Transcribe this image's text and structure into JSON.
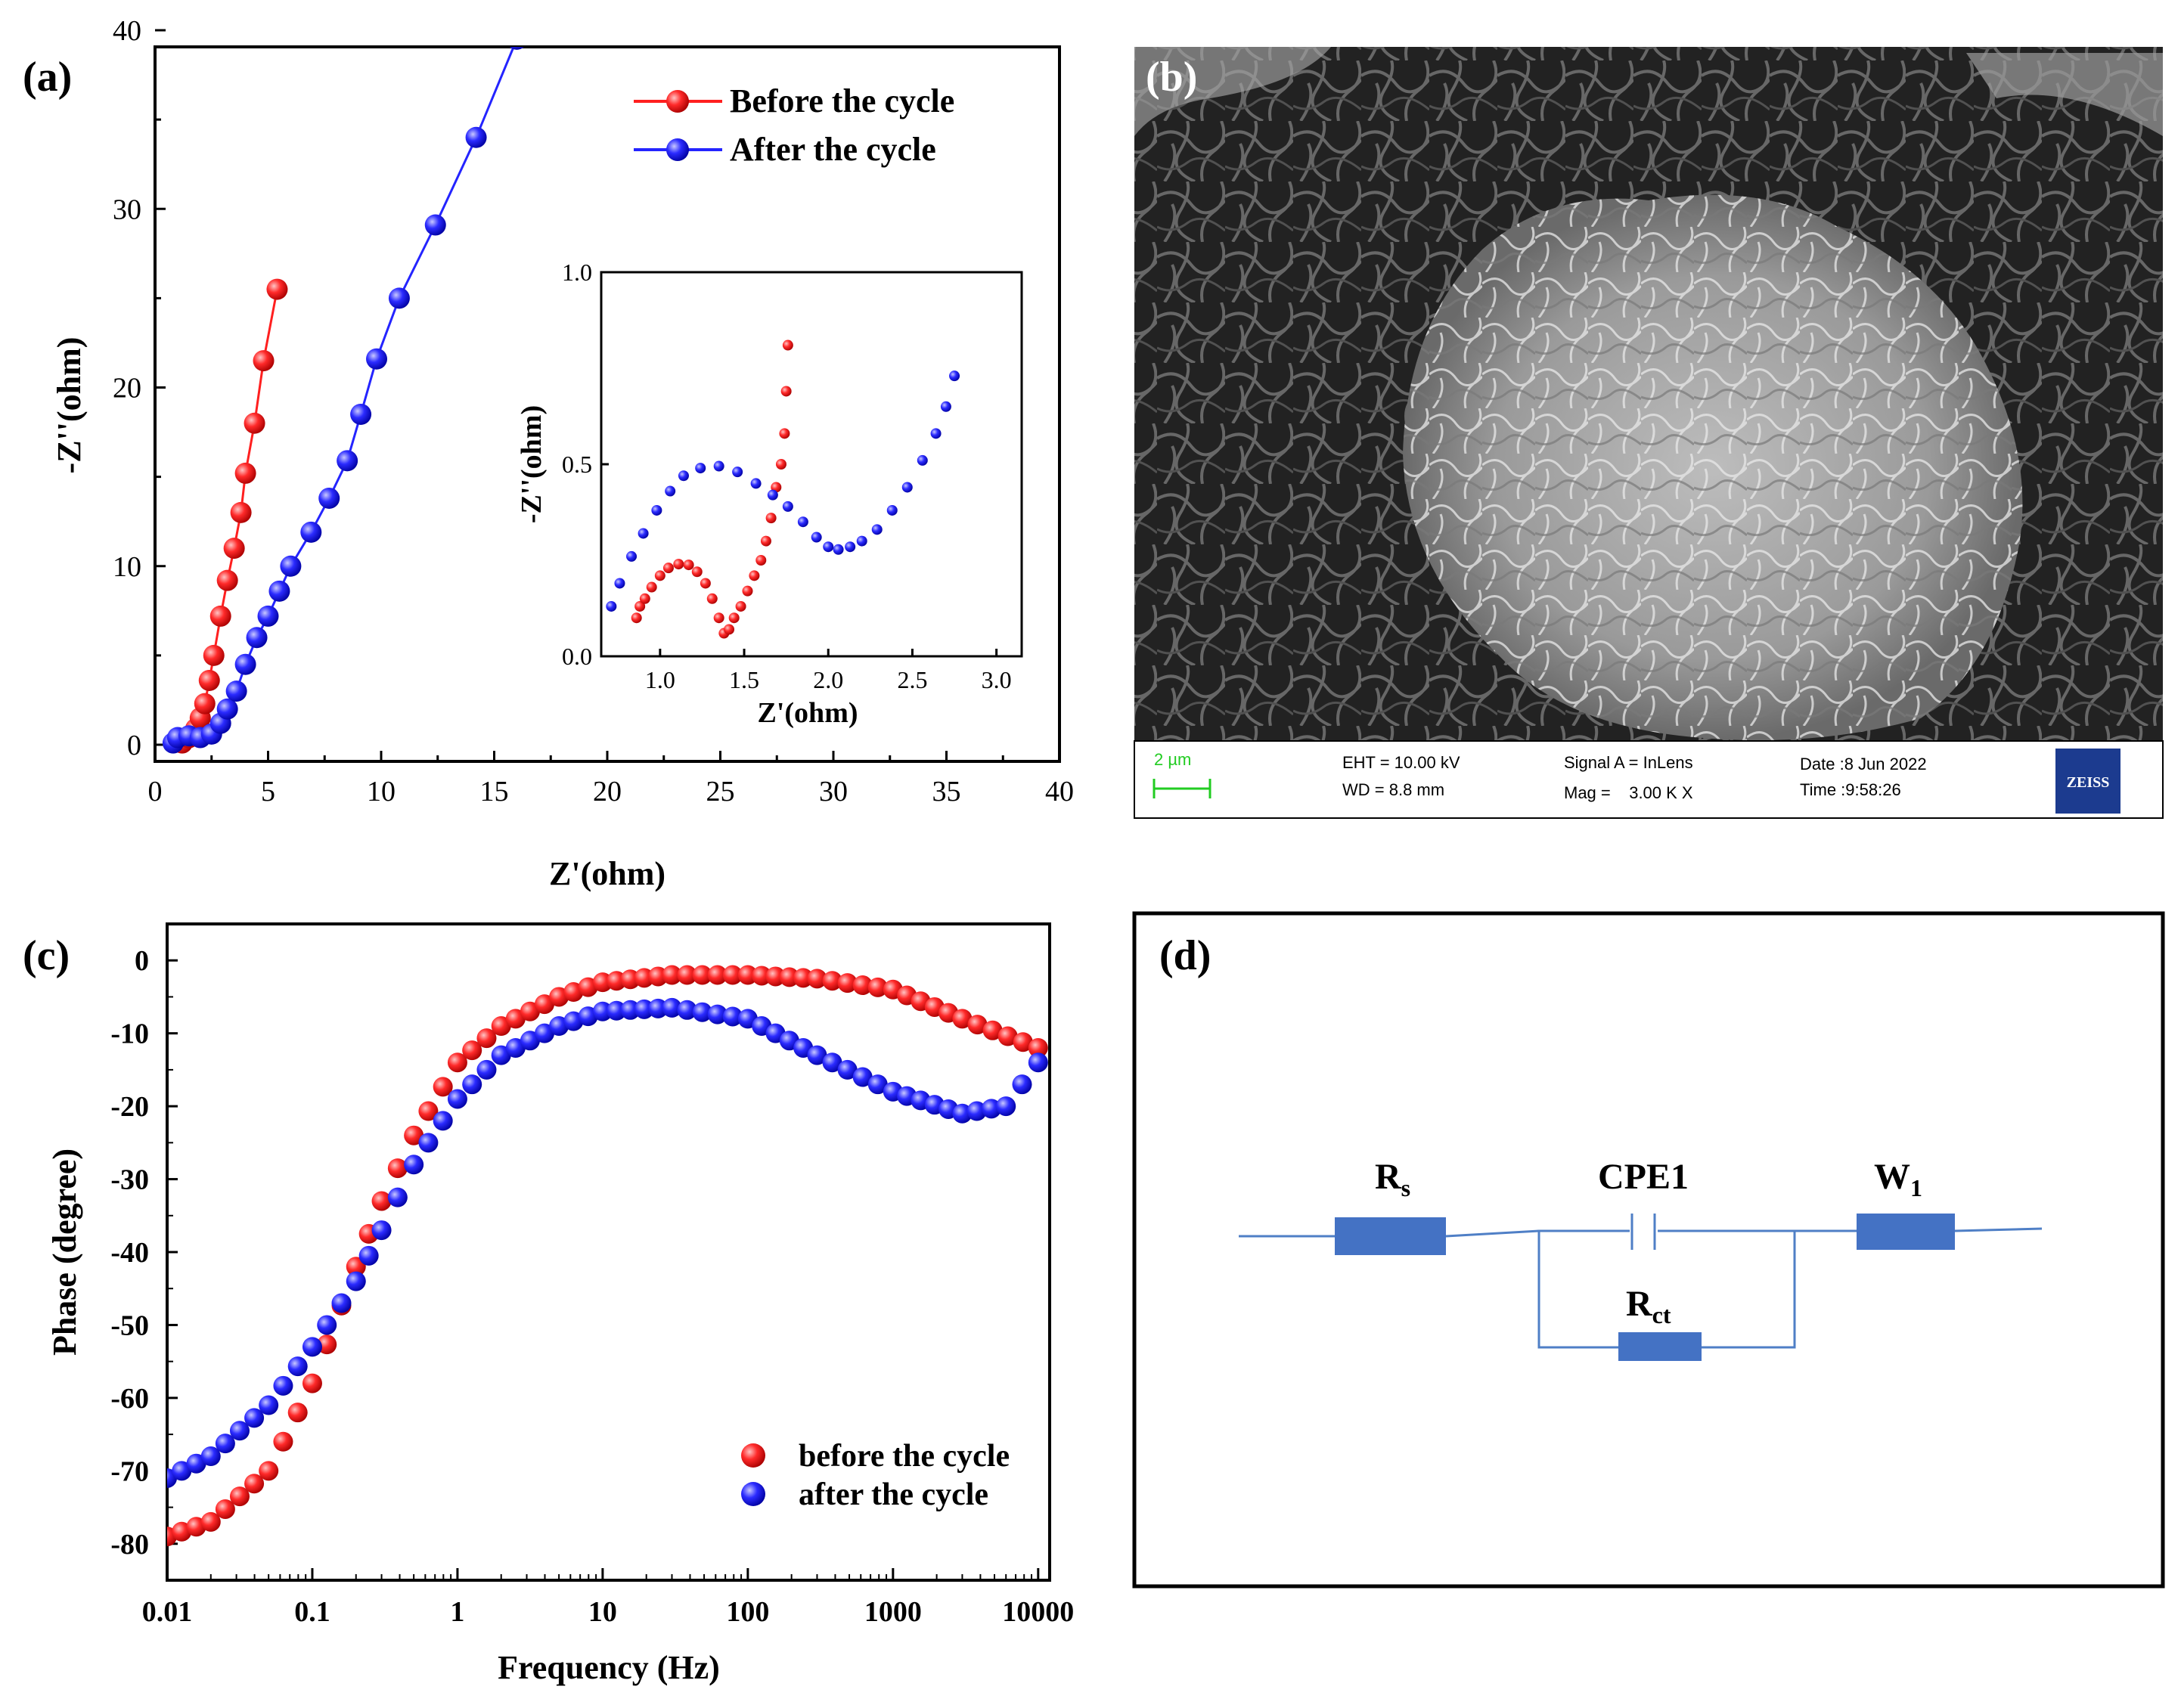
{
  "panel_labels": {
    "a": "(a)",
    "b": "(b)",
    "c": "(c)",
    "d": "(d)"
  },
  "colors": {
    "red": "#ff1f1f",
    "blue": "#2424ff",
    "circuit": "#4f7fc6",
    "green": "#22cc22",
    "zeiss": "#1c3b8f"
  },
  "chart_data": [
    {
      "id": "nyquist",
      "type": "scatter",
      "xlabel": "Z'(ohm)",
      "ylabel": "-Z''(ohm)",
      "xlim": [
        0,
        40
      ],
      "ylim": [
        0,
        40
      ],
      "xticks": [
        "0",
        "5",
        "10",
        "15",
        "20",
        "25",
        "30",
        "35",
        "40"
      ],
      "yticks": [
        "0",
        "10",
        "20",
        "30",
        "40"
      ],
      "legend": [
        {
          "label": "Before the cycle",
          "color": "#ff1f1f"
        },
        {
          "label": "After the cycle",
          "color": "#2424ff"
        }
      ],
      "series": [
        {
          "name": "Before the cycle",
          "color": "#ff1f1f",
          "points": [
            [
              1.2,
              0.1
            ],
            [
              1.5,
              0.4
            ],
            [
              1.8,
              0.9
            ],
            [
              2.0,
              1.5
            ],
            [
              2.2,
              2.3
            ],
            [
              2.4,
              3.6
            ],
            [
              2.6,
              5.0
            ],
            [
              2.9,
              7.2
            ],
            [
              3.2,
              9.2
            ],
            [
              3.5,
              11.0
            ],
            [
              3.8,
              13.0
            ],
            [
              4.0,
              15.2
            ],
            [
              4.4,
              18.0
            ],
            [
              4.8,
              21.5
            ],
            [
              5.4,
              25.5
            ]
          ]
        },
        {
          "name": "After the cycle",
          "color": "#2424ff",
          "points": [
            [
              0.8,
              0.1
            ],
            [
              1.0,
              0.4
            ],
            [
              1.5,
              0.5
            ],
            [
              2.0,
              0.4
            ],
            [
              2.5,
              0.6
            ],
            [
              2.9,
              1.2
            ],
            [
              3.2,
              2.0
            ],
            [
              3.6,
              3.0
            ],
            [
              4.0,
              4.5
            ],
            [
              4.5,
              6.0
            ],
            [
              5.0,
              7.2
            ],
            [
              5.5,
              8.6
            ],
            [
              6.0,
              10.0
            ],
            [
              6.9,
              11.9
            ],
            [
              7.7,
              13.8
            ],
            [
              8.5,
              15.9
            ],
            [
              9.1,
              18.5
            ],
            [
              9.8,
              21.6
            ],
            [
              10.8,
              25.0
            ],
            [
              12.4,
              29.1
            ],
            [
              14.2,
              34.0
            ],
            [
              16.0,
              39.5
            ]
          ]
        }
      ]
    },
    {
      "id": "nyquist-inset",
      "type": "scatter",
      "xlabel": "Z'(ohm)",
      "ylabel": "-Z''(ohm)",
      "xlim": [
        0.65,
        3.15
      ],
      "ylim": [
        0,
        1
      ],
      "xticks": [
        "1.0",
        "1.5",
        "2.0",
        "2.5",
        "3.0"
      ],
      "yticks": [
        "0.0",
        "0.5",
        "1.0"
      ],
      "series": [
        {
          "name": "Before the cycle",
          "color": "#ff1f1f",
          "points": [
            [
              0.86,
              0.1
            ],
            [
              0.88,
              0.13
            ],
            [
              0.91,
              0.15
            ],
            [
              0.95,
              0.18
            ],
            [
              1.0,
              0.21
            ],
            [
              1.05,
              0.23
            ],
            [
              1.11,
              0.24
            ],
            [
              1.17,
              0.238
            ],
            [
              1.22,
              0.22
            ],
            [
              1.27,
              0.19
            ],
            [
              1.31,
              0.15
            ],
            [
              1.35,
              0.1
            ],
            [
              1.38,
              0.06
            ],
            [
              1.41,
              0.07
            ],
            [
              1.44,
              0.1
            ],
            [
              1.48,
              0.13
            ],
            [
              1.52,
              0.17
            ],
            [
              1.56,
              0.21
            ],
            [
              1.6,
              0.25
            ],
            [
              1.63,
              0.3
            ],
            [
              1.66,
              0.36
            ],
            [
              1.69,
              0.44
            ],
            [
              1.72,
              0.5
            ],
            [
              1.74,
              0.58
            ],
            [
              1.75,
              0.69
            ],
            [
              1.76,
              0.81
            ]
          ]
        },
        {
          "name": "After the cycle",
          "color": "#2424ff",
          "points": [
            [
              0.71,
              0.13
            ],
            [
              0.76,
              0.19
            ],
            [
              0.83,
              0.26
            ],
            [
              0.9,
              0.32
            ],
            [
              0.98,
              0.38
            ],
            [
              1.06,
              0.43
            ],
            [
              1.14,
              0.47
            ],
            [
              1.24,
              0.49
            ],
            [
              1.35,
              0.495
            ],
            [
              1.46,
              0.48
            ],
            [
              1.57,
              0.45
            ],
            [
              1.67,
              0.42
            ],
            [
              1.76,
              0.39
            ],
            [
              1.85,
              0.35
            ],
            [
              1.93,
              0.31
            ],
            [
              2.0,
              0.285
            ],
            [
              2.06,
              0.278
            ],
            [
              2.13,
              0.285
            ],
            [
              2.2,
              0.3
            ],
            [
              2.29,
              0.33
            ],
            [
              2.38,
              0.38
            ],
            [
              2.47,
              0.44
            ],
            [
              2.56,
              0.51
            ],
            [
              2.64,
              0.58
            ],
            [
              2.7,
              0.65
            ],
            [
              2.75,
              0.73
            ]
          ]
        }
      ]
    },
    {
      "id": "bode-phase",
      "type": "scatter",
      "xlabel": "Frequency (Hz)",
      "ylabel": "Phase (degree)",
      "xscale": "log",
      "xlim": [
        0.01,
        12000
      ],
      "ylim": [
        -85,
        5
      ],
      "xticks": [
        "0.01",
        "0.1",
        "1",
        "10",
        "100",
        "1000",
        "10000"
      ],
      "yticks": [
        "0",
        "-10",
        "-20",
        "-30",
        "-40",
        "-50",
        "-60",
        "-70",
        "-80"
      ],
      "legend": [
        {
          "label": "before the cycle",
          "color": "#ff1f1f"
        },
        {
          "label": "after the cycle",
          "color": "#2424ff"
        }
      ],
      "series": [
        {
          "name": "before the cycle",
          "color": "#ff1f1f",
          "points": [
            [
              0.01,
              -79
            ],
            [
              0.02,
              -77
            ],
            [
              0.05,
              -70
            ],
            [
              0.1,
              -58
            ],
            [
              0.2,
              -42
            ],
            [
              0.3,
              -33
            ],
            [
              0.5,
              -24
            ],
            [
              1,
              -14
            ],
            [
              2,
              -9
            ],
            [
              5,
              -5
            ],
            [
              10,
              -3
            ],
            [
              30,
              -2
            ],
            [
              100,
              -2
            ],
            [
              300,
              -2.5
            ],
            [
              1000,
              -4
            ],
            [
              3000,
              -8
            ],
            [
              10000,
              -12
            ]
          ]
        },
        {
          "name": "after the cycle",
          "color": "#2424ff",
          "points": [
            [
              0.01,
              -71
            ],
            [
              0.02,
              -68
            ],
            [
              0.05,
              -61
            ],
            [
              0.1,
              -53
            ],
            [
              0.2,
              -44
            ],
            [
              0.3,
              -37
            ],
            [
              0.5,
              -28
            ],
            [
              1,
              -19
            ],
            [
              2,
              -13
            ],
            [
              5,
              -9
            ],
            [
              10,
              -7
            ],
            [
              30,
              -6.5
            ],
            [
              100,
              -8
            ],
            [
              300,
              -13
            ],
            [
              1000,
              -18
            ],
            [
              3000,
              -21
            ],
            [
              6000,
              -20
            ],
            [
              10000,
              -14
            ]
          ]
        }
      ]
    }
  ],
  "sem": {
    "scale_label": "2 µm",
    "eht_label": "EHT = 10.00 kV",
    "wd_label": "WD =  8.8 mm",
    "signal_label": "Signal A = InLens",
    "mag_label": "Mag =    3.00 K X",
    "date_label": "Date :8 Jun 2022",
    "time_label": "Time :9:58:26",
    "brand": "ZEISS"
  },
  "circuit": {
    "rs_main": "R",
    "rs_sub": "s",
    "cpe": "CPE1",
    "w_main": "W",
    "w_sub": "1",
    "rct_main": "R",
    "rct_sub": "ct"
  }
}
